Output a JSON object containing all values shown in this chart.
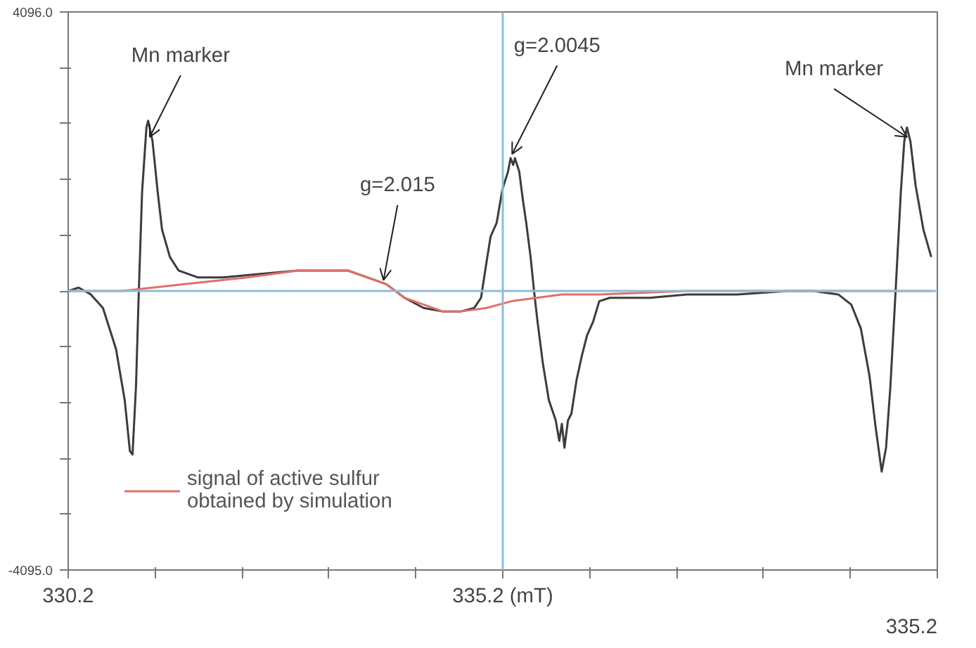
{
  "chart_data": {
    "type": "line",
    "xlim": [
      330.2,
      340.2
    ],
    "xticks": [
      330.2,
      {
        "value": 331.2,
        "label": null
      },
      {
        "value": 332.2,
        "label": null
      },
      {
        "value": 333.2,
        "label": null
      },
      {
        "value": 334.2,
        "label": null
      },
      {
        "value": 335.2,
        "label": "335.2 (mT)"
      },
      {
        "value": 336.2,
        "label": null
      },
      {
        "value": 337.2,
        "label": null
      },
      {
        "value": 338.2,
        "label": null
      },
      {
        "value": 339.2,
        "label": null
      },
      {
        "value": 340.2,
        "label": null
      }
    ],
    "ylim": [
      -4095,
      4096
    ],
    "yticks": [
      {
        "value": -4095,
        "label": "-4095.0"
      },
      {
        "value": -3276,
        "label": null
      },
      {
        "value": -2457,
        "label": null
      },
      {
        "value": -1638,
        "label": null
      },
      {
        "value": -819,
        "label": null
      },
      {
        "value": 0,
        "label": null
      },
      {
        "value": 819,
        "label": null
      },
      {
        "value": 1638,
        "label": null
      },
      {
        "value": 2457,
        "label": null
      },
      {
        "value": 3277,
        "label": null
      },
      {
        "value": 4096,
        "label": "4096.0"
      }
    ],
    "grid": false,
    "legend": "bottom left",
    "marker": "none",
    "line_style": "solid",
    "series": [
      {
        "color": "#3c3c3c",
        "x": [
          330.2,
          330.32,
          330.46,
          330.6,
          330.75,
          330.85,
          330.91,
          330.94,
          330.98,
          331.01,
          331.05,
          331.1,
          331.12,
          331.17,
          331.23,
          331.28,
          331.37,
          331.47,
          331.69,
          331.98,
          332.41,
          332.84,
          333.21,
          333.42,
          333.64,
          333.86,
          334.07,
          334.29,
          334.51,
          334.72,
          334.87,
          334.95,
          335.01,
          335.06,
          335.13,
          335.19,
          335.21,
          335.26,
          335.29,
          335.32,
          335.34,
          335.39,
          335.43,
          335.47,
          335.52,
          335.56,
          335.6,
          335.66,
          335.73,
          335.81,
          335.85,
          335.88,
          335.91,
          335.95,
          335.99,
          336.05,
          336.11,
          336.17,
          336.24,
          336.31,
          336.43,
          336.6,
          336.89,
          337.32,
          337.9,
          338.48,
          338.77,
          339.06,
          339.21,
          339.32,
          339.42,
          339.49,
          339.56,
          339.61,
          339.66,
          339.72,
          339.78,
          339.82,
          339.85,
          339.89,
          339.95,
          340.04,
          340.13
        ],
        "values": [
          0,
          50,
          -50,
          -250,
          -850,
          -1600,
          -2350,
          -2400,
          -1400,
          -100,
          1450,
          2400,
          2500,
          2200,
          1450,
          900,
          500,
          300,
          200,
          200,
          250,
          300,
          300,
          300,
          200,
          100,
          -100,
          -250,
          -300,
          -300,
          -250,
          -100,
          400,
          800,
          1000,
          1450,
          1550,
          1750,
          1950,
          1850,
          1950,
          1750,
          1350,
          1000,
          500,
          0,
          -450,
          -1050,
          -1600,
          -1900,
          -2200,
          -1950,
          -2300,
          -1900,
          -1800,
          -1300,
          -950,
          -650,
          -450,
          -150,
          -100,
          -100,
          -100,
          -50,
          -50,
          0,
          0,
          -50,
          -200,
          -550,
          -1250,
          -2000,
          -2650,
          -2300,
          -1400,
          0,
          1450,
          2200,
          2400,
          2200,
          1550,
          900,
          500
        ]
      },
      {
        "name": "signal of active sulfur obtained by simulation",
        "color": "#e0706a",
        "x": [
          330.2,
          330.82,
          331.54,
          332.26,
          332.84,
          333.21,
          333.42,
          333.64,
          333.86,
          334.07,
          334.29,
          334.51,
          334.72,
          335.01,
          335.3,
          335.59,
          335.88,
          336.31,
          337.32,
          340.13
        ],
        "values": [
          0,
          0,
          100,
          200,
          300,
          300,
          300,
          200,
          100,
          -100,
          -200,
          -300,
          -300,
          -250,
          -150,
          -100,
          -50,
          -50,
          0,
          0
        ]
      }
    ],
    "ref_lines": [
      {
        "axis": "x",
        "value": 335.2,
        "color": "#8fbcd8"
      },
      {
        "axis": "y",
        "value": 0,
        "color": "#8fbcd8"
      }
    ],
    "annotations": [
      "335.2",
      {
        "text": "Mn marker",
        "x": 331.17,
        "y": 2200
      },
      {
        "text": "g=2.015",
        "x": 333.86,
        "y": 100
      },
      {
        "text": "g=2.0045",
        "x": 335.34,
        "y": 1950
      },
      {
        "text": "Mn marker",
        "x": 339.82,
        "y": 2200
      }
    ]
  }
}
